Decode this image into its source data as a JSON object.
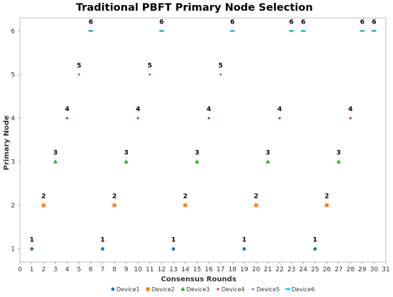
{
  "chart_data": {
    "type": "scatter",
    "title": "Traditional PBFT Primary Node Selection",
    "xlabel": "Consensus Rounds",
    "ylabel": "Primary Node",
    "xlim": [
      0,
      31
    ],
    "ylim": [
      0.7,
      6.3
    ],
    "x_ticks": [
      "0",
      "1",
      "2",
      "3",
      "4",
      "5",
      "6",
      "7",
      "8",
      "9",
      "10",
      "11",
      "12",
      "13",
      "14",
      "15",
      "16",
      "17",
      "18",
      "19",
      "20",
      "21",
      "22",
      "23",
      "24",
      "25",
      "26",
      "27",
      "28",
      "29",
      "30",
      "31"
    ],
    "y_ticks": [
      "1",
      "2",
      "3",
      "4",
      "5",
      "6"
    ],
    "grid": false,
    "legend_position": "bottom",
    "series": [
      {
        "name": "Device1",
        "color": "#1f77b4",
        "marker": "circle",
        "points": [
          {
            "x": 1,
            "y": 1
          },
          {
            "x": 7,
            "y": 1
          },
          {
            "x": 13,
            "y": 1
          },
          {
            "x": 19,
            "y": 1
          },
          {
            "x": 25,
            "y": 1
          }
        ]
      },
      {
        "name": "Device2",
        "color": "#ff7f0e",
        "marker": "square",
        "points": [
          {
            "x": 2,
            "y": 2
          },
          {
            "x": 8,
            "y": 2
          },
          {
            "x": 14,
            "y": 2
          },
          {
            "x": 20,
            "y": 2
          },
          {
            "x": 26,
            "y": 2
          }
        ]
      },
      {
        "name": "Device3",
        "color": "#2ca02c",
        "marker": "triangle",
        "points": [
          {
            "x": 3,
            "y": 3
          },
          {
            "x": 9,
            "y": 3
          },
          {
            "x": 15,
            "y": 3
          },
          {
            "x": 21,
            "y": 3
          },
          {
            "x": 27,
            "y": 3
          }
        ]
      },
      {
        "name": "Device4",
        "color": "#d62728",
        "marker": "diamond",
        "points": [
          {
            "x": 4,
            "y": 4
          },
          {
            "x": 10,
            "y": 4
          },
          {
            "x": 16,
            "y": 4
          },
          {
            "x": 22,
            "y": 4
          },
          {
            "x": 28,
            "y": 4
          }
        ]
      },
      {
        "name": "Device5",
        "color": "#9467bd",
        "marker": "diamond",
        "points": [
          {
            "x": 5,
            "y": 5
          },
          {
            "x": 11,
            "y": 5
          },
          {
            "x": 17,
            "y": 5
          }
        ]
      },
      {
        "name": "Device6",
        "color": "#17becf",
        "marker": "dash",
        "points": [
          {
            "x": 6,
            "y": 6
          },
          {
            "x": 12,
            "y": 6
          },
          {
            "x": 18,
            "y": 6
          },
          {
            "x": 23,
            "y": 6
          },
          {
            "x": 24,
            "y": 6
          },
          {
            "x": 29,
            "y": 6
          },
          {
            "x": 30,
            "y": 6
          }
        ]
      }
    ]
  }
}
